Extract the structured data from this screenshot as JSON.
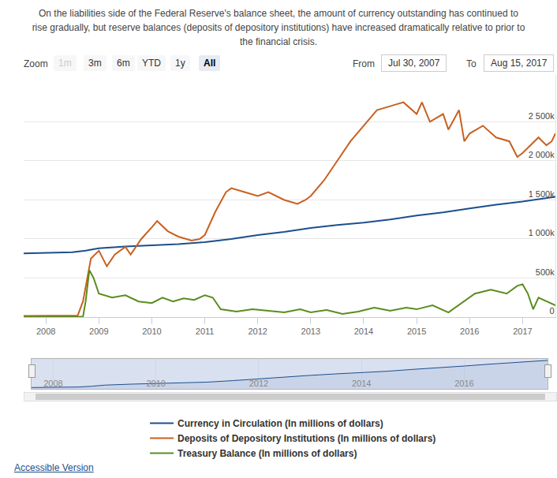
{
  "header": {
    "text": "On the liabilities side of the Federal Reserve's balance sheet, the amount of currency outstanding has continued to rise gradually, but reserve balances (deposits of depository institutions) have increased dramatically relative to prior to the financial crisis."
  },
  "controls": {
    "zoom_label": "Zoom",
    "buttons": [
      "1m",
      "3m",
      "6m",
      "YTD",
      "1y",
      "All"
    ],
    "disabled": [
      "1m"
    ],
    "selected": "All",
    "from_label": "From",
    "from": "Jul 30, 2007",
    "to_label": "To",
    "to": "Aug 15, 2017"
  },
  "chart_data": {
    "type": "line",
    "series": [
      {
        "name": "Currency in Circulation (In millions of dollars)",
        "color": "#1c4f8c",
        "x": [
          2007.58,
          2008.0,
          2008.5,
          2008.75,
          2009.0,
          2009.5,
          2010.0,
          2010.5,
          2011.0,
          2011.5,
          2012.0,
          2012.5,
          2013.0,
          2013.5,
          2014.0,
          2014.5,
          2015.0,
          2015.5,
          2016.0,
          2016.5,
          2017.0,
          2017.62
        ],
        "values": [
          815000,
          820000,
          830000,
          850000,
          880000,
          905000,
          920000,
          935000,
          960000,
          1000000,
          1050000,
          1090000,
          1140000,
          1180000,
          1210000,
          1250000,
          1300000,
          1340000,
          1390000,
          1440000,
          1480000,
          1540000
        ]
      },
      {
        "name": "Deposits of Depository Institutions (In millions of dollars)",
        "color": "#c9601f",
        "x": [
          2007.58,
          2008.0,
          2008.6,
          2008.7,
          2008.85,
          2009.0,
          2009.15,
          2009.3,
          2009.5,
          2009.6,
          2009.8,
          2010.0,
          2010.1,
          2010.3,
          2010.5,
          2010.75,
          2010.9,
          2011.0,
          2011.2,
          2011.4,
          2011.5,
          2011.75,
          2012.0,
          2012.2,
          2012.5,
          2012.75,
          2012.9,
          2013.0,
          2013.25,
          2013.5,
          2013.75,
          2014.0,
          2014.25,
          2014.5,
          2014.75,
          2015.0,
          2015.1,
          2015.25,
          2015.5,
          2015.6,
          2015.8,
          2015.9,
          2016.0,
          2016.25,
          2016.5,
          2016.75,
          2016.9,
          2017.0,
          2017.15,
          2017.3,
          2017.45,
          2017.55,
          2017.62
        ],
        "values": [
          15000,
          15000,
          20000,
          200000,
          750000,
          850000,
          650000,
          800000,
          900000,
          800000,
          1000000,
          1150000,
          1230000,
          1100000,
          1030000,
          980000,
          1000000,
          1050000,
          1350000,
          1600000,
          1650000,
          1600000,
          1550000,
          1600000,
          1500000,
          1450000,
          1500000,
          1550000,
          1750000,
          2000000,
          2250000,
          2450000,
          2650000,
          2700000,
          2750000,
          2600000,
          2750000,
          2500000,
          2600000,
          2400000,
          2650000,
          2250000,
          2350000,
          2450000,
          2300000,
          2250000,
          2050000,
          2100000,
          2200000,
          2300000,
          2200000,
          2250000,
          2350000
        ]
      },
      {
        "name": "Treasury Balance (In millions of dollars)",
        "color": "#5b8c1f",
        "x": [
          2007.58,
          2008.0,
          2008.7,
          2008.75,
          2008.82,
          2008.9,
          2009.0,
          2009.25,
          2009.5,
          2009.75,
          2010.0,
          2010.2,
          2010.4,
          2010.6,
          2010.8,
          2011.0,
          2011.15,
          2011.3,
          2011.6,
          2011.9,
          2012.2,
          2012.5,
          2012.8,
          2013.0,
          2013.3,
          2013.6,
          2013.9,
          2014.2,
          2014.5,
          2014.8,
          2015.0,
          2015.3,
          2015.6,
          2015.9,
          2016.1,
          2016.4,
          2016.7,
          2016.9,
          2017.0,
          2017.1,
          2017.2,
          2017.3,
          2017.45,
          2017.62
        ],
        "values": [
          5000,
          5000,
          5000,
          200000,
          600000,
          500000,
          300000,
          250000,
          280000,
          200000,
          180000,
          250000,
          200000,
          240000,
          220000,
          280000,
          250000,
          100000,
          70000,
          100000,
          80000,
          60000,
          100000,
          60000,
          90000,
          40000,
          70000,
          120000,
          80000,
          120000,
          100000,
          150000,
          60000,
          200000,
          300000,
          350000,
          300000,
          400000,
          420000,
          300000,
          100000,
          250000,
          200000,
          150000
        ]
      }
    ],
    "xlim": [
      2007.58,
      2017.62
    ],
    "xticks": [
      2008,
      2009,
      2010,
      2011,
      2012,
      2013,
      2014,
      2015,
      2016,
      2017
    ],
    "ylim": [
      0,
      3100000
    ],
    "yticks": [
      0,
      {
        "value": 500000,
        "label": "500k"
      },
      {
        "value": 1000000,
        "label": "1 000k"
      },
      {
        "value": 1500000,
        "label": "1 500k"
      },
      {
        "value": 2000000,
        "label": "2 000k"
      },
      {
        "value": 2500000,
        "label": "2 500k"
      }
    ],
    "grid": true,
    "legend": "bottom"
  },
  "navigator": {
    "series": "Currency in Circulation (In millions of dollars)",
    "xticks": [
      2008,
      2010,
      2012,
      2014,
      2016
    ],
    "ylim": [
      780000,
      1580000
    ]
  },
  "footer": {
    "link": "Accessible Version"
  }
}
